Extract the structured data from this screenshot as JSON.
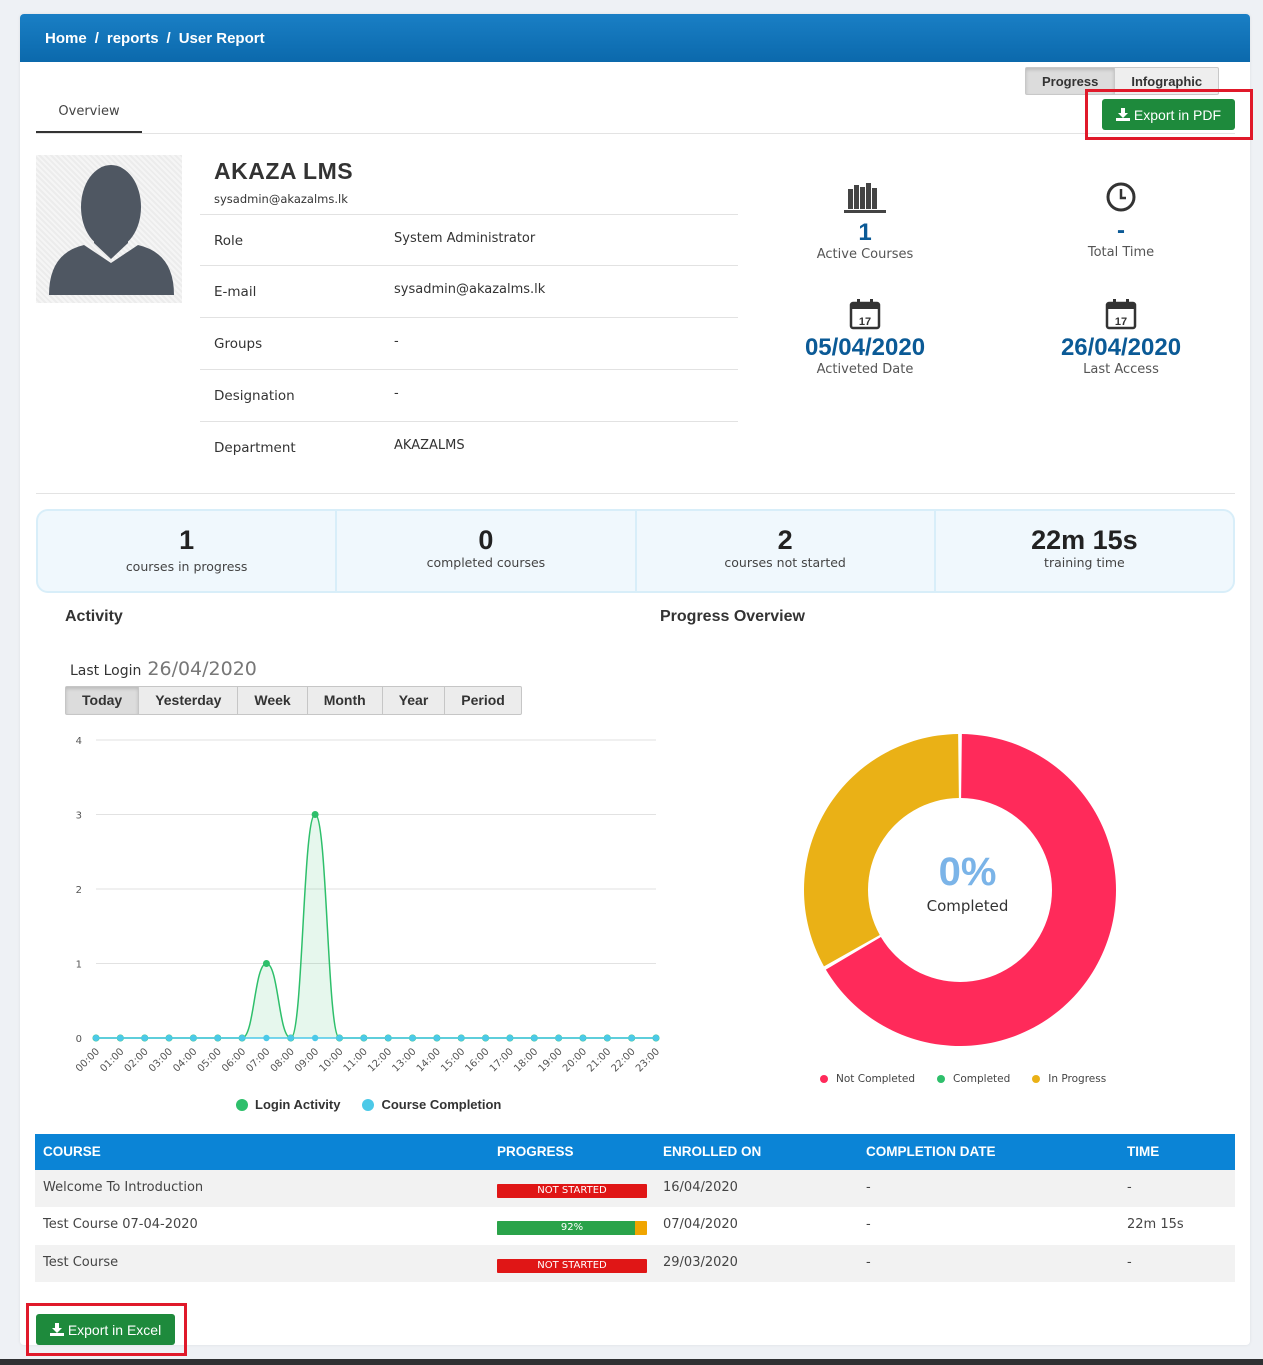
{
  "breadcrumb": {
    "home": "Home",
    "sep": "/",
    "reports": "reports",
    "current": "User Report"
  },
  "tabs": {
    "overview": "Overview",
    "progress": "Progress",
    "infographic": "Infographic"
  },
  "buttons": {
    "export_pdf": "Export in PDF",
    "export_excel": "Export in Excel"
  },
  "user": {
    "name": "AKAZA LMS",
    "email_small": "sysadmin@akazalms.lk",
    "fields": [
      {
        "label": "Role",
        "value": "System Administrator"
      },
      {
        "label": "E-mail",
        "value": "sysadmin@akazalms.lk"
      },
      {
        "label": "Groups",
        "value": "-"
      },
      {
        "label": "Designation",
        "value": "-"
      },
      {
        "label": "Department",
        "value": "AKAZALMS"
      }
    ]
  },
  "stats": {
    "active_courses": {
      "value": "1",
      "label": "Active Courses"
    },
    "total_time": {
      "value": "-",
      "label": "Total Time"
    },
    "activated_date": {
      "value": "05/04/2020",
      "label": "Activeted Date",
      "icon_day": "17"
    },
    "last_access": {
      "value": "26/04/2020",
      "label": "Last Access",
      "icon_day": "17"
    }
  },
  "summary": [
    {
      "value": "1",
      "label": "courses in progress"
    },
    {
      "value": "0",
      "label": "completed courses"
    },
    {
      "value": "2",
      "label": "courses not started"
    },
    {
      "value": "22m 15s",
      "label": "training time"
    }
  ],
  "activity": {
    "title": "Activity",
    "last_login_label": "Last Login",
    "last_login_date": "26/04/2020",
    "periods": [
      "Today",
      "Yesterday",
      "Week",
      "Month",
      "Year",
      "Period"
    ],
    "active_period": "Today"
  },
  "progress_overview": {
    "title": "Progress Overview",
    "center_value": "0%",
    "center_label": "Completed",
    "legend": [
      "Not Completed",
      "Completed",
      "In Progress"
    ]
  },
  "chart_data": [
    {
      "type": "line",
      "x": [
        "00:00",
        "01:00",
        "02:00",
        "03:00",
        "04:00",
        "05:00",
        "06:00",
        "07:00",
        "08:00",
        "09:00",
        "10:00",
        "11:00",
        "12:00",
        "13:00",
        "14:00",
        "15:00",
        "16:00",
        "17:00",
        "18:00",
        "19:00",
        "20:00",
        "21:00",
        "22:00",
        "23:00"
      ],
      "series": [
        {
          "name": "Login Activity",
          "color": "#2ebf6b",
          "values": [
            0,
            0,
            0,
            0,
            0,
            0,
            0,
            1,
            0,
            3,
            0,
            0,
            0,
            0,
            0,
            0,
            0,
            0,
            0,
            0,
            0,
            0,
            0,
            0
          ]
        },
        {
          "name": "Course Completion",
          "color": "#4cc9e8",
          "values": [
            0,
            0,
            0,
            0,
            0,
            0,
            0,
            0,
            0,
            0,
            0,
            0,
            0,
            0,
            0,
            0,
            0,
            0,
            0,
            0,
            0,
            0,
            0,
            0
          ]
        }
      ],
      "ylim": [
        0,
        4
      ],
      "yticks": [
        0,
        1,
        2,
        3,
        4
      ],
      "grid": true,
      "legend": "bottom"
    },
    {
      "type": "pie",
      "donut": true,
      "labels": [
        "Not Completed",
        "Completed",
        "In Progress"
      ],
      "values": [
        2,
        0,
        1
      ],
      "colors": [
        "#ff2a5a",
        "#2ebf6b",
        "#eab116"
      ],
      "legend": "bottom"
    }
  ],
  "table": {
    "headers": [
      "COURSE",
      "PROGRESS",
      "ENROLLED ON",
      "COMPLETION DATE",
      "TIME"
    ],
    "rows": [
      {
        "course": "Welcome To Introduction",
        "progress_text": "NOT STARTED",
        "progress": 0,
        "enrolled": "16/04/2020",
        "completion": "-",
        "time": "-"
      },
      {
        "course": "Test Course 07-04-2020",
        "progress_text": "92%",
        "progress": 92,
        "enrolled": "07/04/2020",
        "completion": "-",
        "time": "22m 15s"
      },
      {
        "course": "Test Course",
        "progress_text": "NOT STARTED",
        "progress": 0,
        "enrolled": "29/03/2020",
        "completion": "-",
        "time": "-"
      }
    ]
  }
}
